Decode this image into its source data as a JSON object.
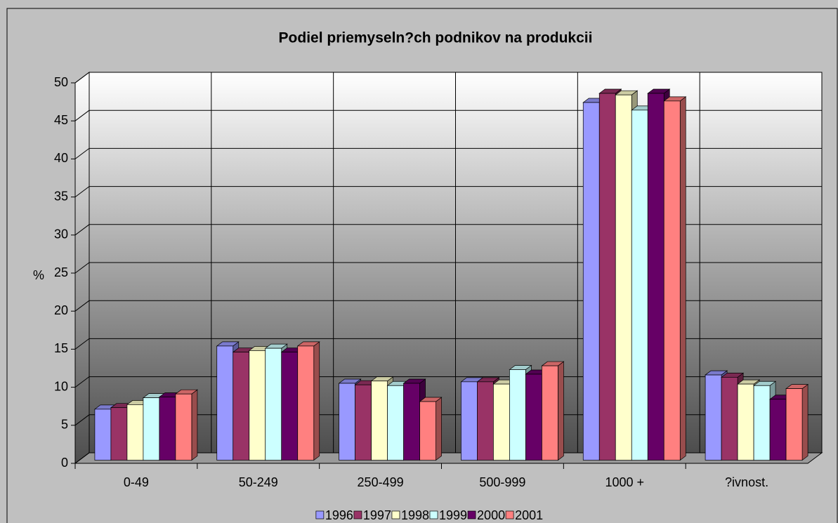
{
  "chart_data": {
    "type": "bar3d",
    "title": "Podiel priemyseln?ch podnikov na produkcii",
    "y_label": "%",
    "categories": [
      "0-49",
      "50-249",
      "250-499",
      "500-999",
      "1000 +",
      "?ivnost."
    ],
    "series": [
      {
        "name": "1996",
        "color": "#9999ff",
        "values": [
          6.7,
          15.0,
          10.1,
          10.3,
          47.0,
          11.2
        ]
      },
      {
        "name": "1997",
        "color": "#993366",
        "values": [
          6.9,
          14.2,
          9.9,
          10.3,
          48.2,
          10.9
        ]
      },
      {
        "name": "1998",
        "color": "#ffffcc",
        "values": [
          7.3,
          14.4,
          10.4,
          10.0,
          48.0,
          10.0
        ]
      },
      {
        "name": "1999",
        "color": "#ccffff",
        "values": [
          8.2,
          14.7,
          9.8,
          11.9,
          46.0,
          9.8
        ]
      },
      {
        "name": "2000",
        "color": "#660066",
        "values": [
          8.3,
          14.2,
          10.1,
          11.3,
          48.2,
          8.0
        ]
      },
      {
        "name": "2001",
        "color": "#ff8080",
        "values": [
          8.7,
          15.0,
          7.7,
          12.4,
          47.2,
          9.4
        ]
      }
    ],
    "ylim": [
      0,
      50
    ],
    "yticks": [
      0,
      5,
      10,
      15,
      20,
      25,
      30,
      35,
      40,
      45,
      50
    ],
    "grid": true,
    "legend": "bottom"
  }
}
